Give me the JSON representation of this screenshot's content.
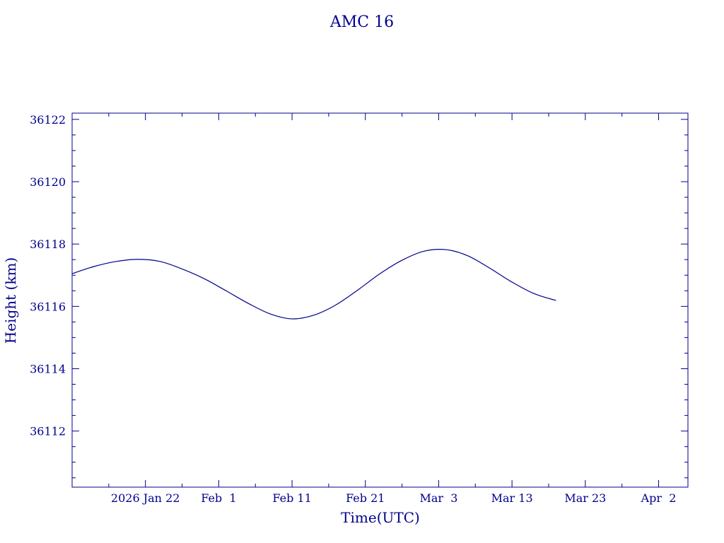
{
  "chart_data": {
    "type": "line",
    "title": "AMC 16",
    "xlabel": "Time(UTC)",
    "ylabel": "Height (km)",
    "ylim": [
      36110.2,
      36122.2
    ],
    "xlim": [
      "2026-01-12",
      "2026-04-06"
    ],
    "x_ticks": [
      {
        "date": "2026-01-22",
        "label": "2026 Jan 22"
      },
      {
        "date": "2026-02-01",
        "label": "Feb  1"
      },
      {
        "date": "2026-02-11",
        "label": "Feb 11"
      },
      {
        "date": "2026-02-21",
        "label": "Feb 21"
      },
      {
        "date": "2026-03-03",
        "label": "Mar  3"
      },
      {
        "date": "2026-03-13",
        "label": "Mar 13"
      },
      {
        "date": "2026-03-23",
        "label": "Mar 23"
      },
      {
        "date": "2026-04-02",
        "label": "Apr  2"
      }
    ],
    "y_ticks": [
      36112,
      36114,
      36116,
      36118,
      36120,
      36122
    ],
    "grid": false,
    "color": "#00008b",
    "series": [
      {
        "x": [
          "2026-01-12",
          "2026-01-15",
          "2026-01-18",
          "2026-01-21",
          "2026-01-24",
          "2026-01-27",
          "2026-01-30",
          "2026-02-02",
          "2026-02-05",
          "2026-02-08",
          "2026-02-11",
          "2026-02-14",
          "2026-02-17",
          "2026-02-20",
          "2026-02-23",
          "2026-02-26",
          "2026-03-01",
          "2026-03-04",
          "2026-03-07",
          "2026-03-10",
          "2026-03-13",
          "2026-03-16",
          "2026-03-19"
        ],
        "y": [
          36117.05,
          36117.28,
          36117.44,
          36117.51,
          36117.44,
          36117.2,
          36116.89,
          36116.5,
          36116.1,
          36115.76,
          36115.6,
          36115.72,
          36116.05,
          36116.53,
          36117.05,
          36117.48,
          36117.77,
          36117.82,
          36117.62,
          36117.22,
          36116.78,
          36116.41,
          36116.19
        ]
      }
    ]
  }
}
